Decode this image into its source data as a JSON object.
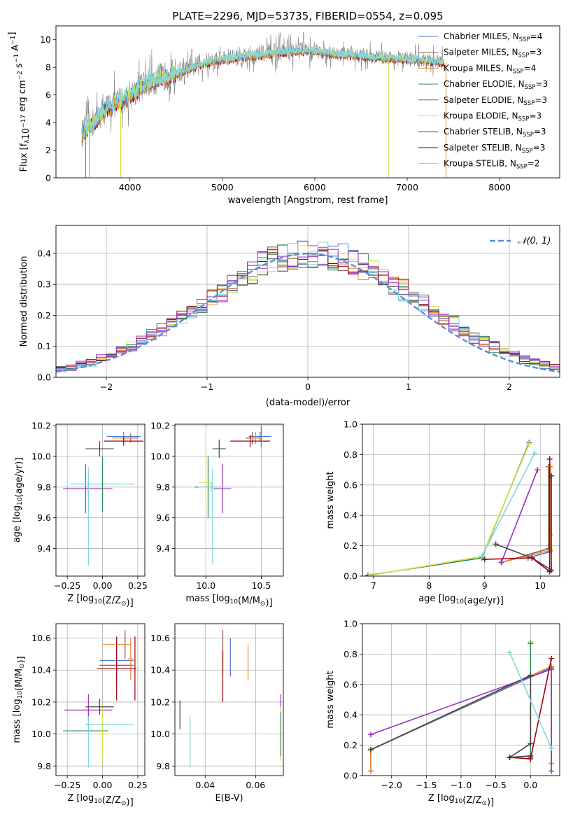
{
  "figure_title": "PLATE=2296, MJD=53735, FIBERID=0554, z=0.095",
  "colors": {
    "Chabrier MILES": "#4878d0",
    "Salpeter MILES": "#8c564b",
    "Kroupa MILES": "#ee8a2c",
    "Chabrier ELODIE": "#2e8b57",
    "Salpeter ELODIE": "#9b30c0",
    "Kroupa ELODIE": "#d6e04a",
    "Chabrier STELIB": "#444444",
    "Salpeter STELIB": "#a00010",
    "Kroupa STELIB": "#7fd8dc",
    "spectrum_data": "#808080",
    "spectrum_model": "#7fd8dc",
    "normal_curve": "#5b8bd8",
    "grid": "#b0b0b0"
  },
  "chart_data": [
    {
      "id": "spectrum",
      "type": "line",
      "xlabel": "wavelength [Angstrom, rest frame]",
      "ylabel": "Flux [f_λ10^-17 erg cm^-2 s^-1 A^-1]",
      "xlim": [
        3200,
        8650
      ],
      "ylim": [
        0,
        11
      ],
      "xticks": [
        4000,
        5000,
        6000,
        7000,
        8000
      ],
      "yticks": [
        0,
        2,
        4,
        6,
        8,
        10
      ],
      "grid": false,
      "legend_position": "top-right",
      "legend": [
        {
          "label": "Chabrier MILES, N_SSP=4",
          "text": "Chabrier MILES, N",
          "sub": "SSP",
          "tail": "=4",
          "model": "Chabrier MILES"
        },
        {
          "label": "Salpeter MILES, N_SSP=3",
          "text": "Salpeter MILES, N",
          "sub": "SSP",
          "tail": "=3",
          "model": "Salpeter MILES"
        },
        {
          "label": "Kroupa MILES, N_SSP=4",
          "text": "Kroupa MILES, N",
          "sub": "SSP",
          "tail": "=4",
          "model": "Kroupa MILES"
        },
        {
          "label": "Chabrier ELODIE, N_SSP=3",
          "text": "Chabrier ELODIE, N",
          "sub": "SSP",
          "tail": "=3",
          "model": "Chabrier ELODIE"
        },
        {
          "label": "Salpeter ELODIE, N_SSP=3",
          "text": "Salpeter ELODIE, N",
          "sub": "SSP",
          "tail": "=3",
          "model": "Salpeter ELODIE"
        },
        {
          "label": "Kroupa ELODIE, N_SSP=3",
          "text": "Kroupa ELODIE, N",
          "sub": "SSP",
          "tail": "=3",
          "model": "Kroupa ELODIE"
        },
        {
          "label": "Chabrier STELIB, N_SSP=3",
          "text": "Chabrier STELIB, N",
          "sub": "SSP",
          "tail": "=3",
          "model": "Chabrier STELIB"
        },
        {
          "label": "Salpeter STELIB, N_SSP=3",
          "text": "Salpeter STELIB, N",
          "sub": "SSP",
          "tail": "=3",
          "model": "Salpeter STELIB"
        },
        {
          "label": "Kroupa STELIB, N_SSP=2",
          "text": "Kroupa STELIB, N",
          "sub": "SSP",
          "tail": "=2",
          "model": "Kroupa STELIB"
        }
      ],
      "continuum": {
        "x": [
          3480,
          3600,
          3700,
          3800,
          3900,
          4000,
          4100,
          4200,
          4300,
          4400,
          4500,
          4600,
          4800,
          5000,
          5200,
          5400,
          5600,
          5800,
          6000,
          6200,
          6400,
          6600,
          6800,
          7000,
          7200,
          7400
        ],
        "y": [
          3.2,
          4.0,
          4.8,
          5.3,
          5.6,
          6.0,
          6.5,
          6.9,
          7.2,
          7.4,
          7.6,
          7.8,
          8.3,
          8.6,
          8.8,
          8.9,
          9.1,
          9.2,
          9.2,
          9.0,
          8.9,
          8.8,
          8.7,
          8.6,
          8.5,
          8.4
        ]
      },
      "data_noise_amplitude": 1.3,
      "model_spikes": [
        {
          "model": "Salpeter MILES",
          "x": 3520,
          "y": 0
        },
        {
          "model": "Kroupa MILES",
          "x": 3560,
          "y": 0
        },
        {
          "model": "Kroupa ELODIE",
          "x": 3900,
          "y": 0
        },
        {
          "model": "Kroupa ELODIE",
          "x": 6800,
          "y": 0
        },
        {
          "model": "Kroupa MILES",
          "x": 7420,
          "y": 0
        }
      ]
    },
    {
      "id": "residuals",
      "type": "histogram",
      "xlabel": "(data-model)/error",
      "ylabel": "Normed distribution",
      "xlim": [
        -2.5,
        2.5
      ],
      "ylim": [
        0,
        0.49
      ],
      "xticks": [
        -2,
        -1,
        0,
        1,
        2
      ],
      "yticks": [
        0.0,
        0.1,
        0.2,
        0.3,
        0.4
      ],
      "grid": true,
      "legend_position": "top-right",
      "legend": "𝒩(0, 1)",
      "bin_width": 0.1,
      "bin_start": -2.5,
      "normal": {
        "mean": 0,
        "sigma": 1
      }
    },
    {
      "id": "age_vs_Z",
      "type": "errorbar",
      "xlabel": "Z [log10(Z/Z⊙)]",
      "ylabel": "age  [log10(age/yr)]",
      "xlim": [
        -0.33,
        0.3
      ],
      "ylim": [
        9.22,
        10.21
      ],
      "xticks": [
        -0.25,
        0.0,
        0.25
      ],
      "yticks": [
        9.4,
        9.6,
        9.8,
        10.0,
        10.2
      ],
      "grid": true,
      "points": [
        {
          "model": "Chabrier MILES",
          "x": 0.15,
          "y": 10.13,
          "xerr": 0.12,
          "yerr": 0.03
        },
        {
          "model": "Salpeter MILES",
          "x": 0.2,
          "y": 10.12,
          "xerr": 0.05,
          "yerr": 0.03
        },
        {
          "model": "Kroupa MILES",
          "x": 0.15,
          "y": 10.12,
          "xerr": 0.08,
          "yerr": 0.03
        },
        {
          "model": "Chabrier ELODIE",
          "x": -0.12,
          "y": 9.79,
          "xerr": 0.16,
          "yerr": 0.16
        },
        {
          "model": "Salpeter ELODIE",
          "x": -0.1,
          "y": 9.79,
          "xerr": 0.17,
          "yerr": 0.05
        },
        {
          "model": "Kroupa ELODIE",
          "x": 0.0,
          "y": 9.82,
          "xerr": 0.05,
          "yerr": 0.18
        },
        {
          "model": "Chabrier STELIB",
          "x": -0.02,
          "y": 10.05,
          "xerr": 0.1,
          "yerr": 0.05
        },
        {
          "model": "Salpeter STELIB",
          "x": 0.15,
          "y": 10.1,
          "xerr": 0.14,
          "yerr": 0.03
        },
        {
          "model": "Kroupa STELIB",
          "x": 0.0,
          "y": 9.82,
          "xerr": 0.23,
          "yerr": 0.12
        },
        {
          "model": "Kroupa STELIB",
          "x": -0.1,
          "y": 9.61,
          "xerr": 0.0,
          "yerr": 0.32
        },
        {
          "model": "Chabrier ELODIE",
          "x": 0.0,
          "y": 9.82,
          "xerr": 0.0,
          "yerr": 0.18
        }
      ]
    },
    {
      "id": "age_vs_mass",
      "type": "errorbar",
      "xlabel": "mass [log10(M/M⊙)]",
      "ylabel": "",
      "xlim": [
        9.72,
        10.7
      ],
      "ylim": [
        9.22,
        10.21
      ],
      "xticks": [
        10.0,
        10.5
      ],
      "yticks": [
        9.4,
        9.6,
        9.8,
        10.0,
        10.2
      ],
      "grid": true,
      "points": [
        {
          "model": "Chabrier MILES",
          "x": 10.49,
          "y": 10.13,
          "xerr": 0.1,
          "yerr": 0.03
        },
        {
          "model": "Salpeter MILES",
          "x": 10.42,
          "y": 10.12,
          "xerr": 0.06,
          "yerr": 0.04
        },
        {
          "model": "Kroupa MILES",
          "x": 10.45,
          "y": 10.12,
          "xerr": 0.06,
          "yerr": 0.04
        },
        {
          "model": "Chabrier ELODIE",
          "x": 10.02,
          "y": 9.8,
          "xerr": 0.12,
          "yerr": 0.2
        },
        {
          "model": "Salpeter ELODIE",
          "x": 10.15,
          "y": 9.79,
          "xerr": 0.08,
          "yerr": 0.16
        },
        {
          "model": "Kroupa ELODIE",
          "x": 10.0,
          "y": 9.83,
          "xerr": 0.06,
          "yerr": 0.18
        },
        {
          "model": "Chabrier STELIB",
          "x": 10.12,
          "y": 10.05,
          "xerr": 0.06,
          "yerr": 0.06
        },
        {
          "model": "Salpeter STELIB",
          "x": 10.4,
          "y": 10.1,
          "xerr": 0.18,
          "yerr": 0.04
        },
        {
          "model": "Kroupa STELIB",
          "x": 10.05,
          "y": 9.8,
          "xerr": 0.12,
          "yerr": 0.03
        },
        {
          "model": "Kroupa STELIB",
          "x": 10.06,
          "y": 9.61,
          "xerr": 0.0,
          "yerr": 0.31
        },
        {
          "model": "Chabrier MILES",
          "x": 10.5,
          "y": 10.13,
          "xerr": 0.0,
          "yerr": 0.07
        }
      ]
    },
    {
      "id": "massweight_vs_age",
      "type": "line",
      "xlabel": "age  [log10(age/yr)]",
      "ylabel": "mass weight",
      "xlim": [
        6.8,
        10.35
      ],
      "ylim": [
        0,
        1.0
      ],
      "xticks": [
        7,
        8,
        9,
        10
      ],
      "yticks": [
        0.0,
        0.2,
        0.4,
        0.6,
        0.8,
        1.0
      ],
      "grid": true,
      "series": [
        {
          "model": "Chabrier MILES",
          "x": [
            9.78,
            10.17,
            10.17,
            10.17
          ],
          "y": [
            0.12,
            0.16,
            0.03,
            0.72
          ]
        },
        {
          "model": "Salpeter MILES",
          "x": [
            9.3,
            10.15,
            10.15
          ],
          "y": [
            0.09,
            0.18,
            0.72
          ]
        },
        {
          "model": "Kroupa MILES",
          "x": [
            9.3,
            10.18,
            10.18,
            10.18
          ],
          "y": [
            0.09,
            0.17,
            0.27,
            0.72
          ]
        },
        {
          "model": "Chabrier ELODIE",
          "x": [
            6.9,
            8.95,
            9.8
          ],
          "y": [
            0.005,
            0.12,
            0.88
          ]
        },
        {
          "model": "Salpeter ELODIE",
          "x": [
            9.3,
            9.95
          ],
          "y": [
            0.09,
            0.7
          ]
        },
        {
          "model": "Kroupa ELODIE",
          "x": [
            6.95,
            8.95,
            9.8
          ],
          "y": [
            0.005,
            0.13,
            0.87
          ]
        },
        {
          "model": "Chabrier STELIB",
          "x": [
            9.2,
            9.85,
            10.2,
            10.2
          ],
          "y": [
            0.21,
            0.12,
            0.04,
            0.66
          ]
        },
        {
          "model": "Salpeter STELIB",
          "x": [
            9.0,
            9.85,
            10.17,
            10.17
          ],
          "y": [
            0.11,
            0.12,
            0.03,
            0.77
          ]
        },
        {
          "model": "Kroupa STELIB",
          "x": [
            8.95,
            9.9
          ],
          "y": [
            0.13,
            0.81
          ]
        }
      ]
    },
    {
      "id": "mass_vs_Z",
      "type": "errorbar",
      "xlabel": "Z [log10(Z/Z⊙)]",
      "ylabel": "mass [log10(M/M⊙)]",
      "xlim": [
        -0.33,
        0.3
      ],
      "ylim": [
        9.74,
        10.69
      ],
      "xticks": [
        -0.25,
        0.0,
        0.25
      ],
      "yticks": [
        9.8,
        10.0,
        10.2,
        10.4,
        10.6
      ],
      "grid": true,
      "points": [
        {
          "model": "Chabrier MILES",
          "x": 0.1,
          "y": 10.46,
          "xerr": 0.12,
          "yerr": 0.14
        },
        {
          "model": "Salpeter MILES",
          "x": 0.1,
          "y": 10.43,
          "xerr": 0.12,
          "yerr": 0.03
        },
        {
          "model": "Kroupa MILES",
          "x": 0.2,
          "y": 10.47,
          "xerr": 0.02,
          "yerr": 0.13
        },
        {
          "model": "Chabrier ELODIE",
          "x": -0.12,
          "y": 10.02,
          "xerr": 0.16,
          "yerr": 0.0
        },
        {
          "model": "Salpeter ELODIE",
          "x": -0.1,
          "y": 10.15,
          "xerr": 0.17,
          "yerr": 0.1
        },
        {
          "model": "Kroupa ELODIE",
          "x": 0.0,
          "y": 10.0,
          "xerr": 0.05,
          "yerr": 0.17
        },
        {
          "model": "Chabrier STELIB",
          "x": -0.02,
          "y": 10.17,
          "xerr": 0.1,
          "yerr": 0.05
        },
        {
          "model": "Salpeter STELIB",
          "x": 0.1,
          "y": 10.41,
          "xerr": 0.14,
          "yerr": 0.2
        },
        {
          "model": "Salpeter STELIB",
          "x": 0.23,
          "y": 10.41,
          "xerr": 0.0,
          "yerr": 0.2
        },
        {
          "model": "Kroupa STELIB",
          "x": 0.05,
          "y": 10.06,
          "xerr": 0.17,
          "yerr": 0.0
        },
        {
          "model": "Kroupa STELIB",
          "x": -0.1,
          "y": 9.95,
          "xerr": 0.0,
          "yerr": 0.16
        },
        {
          "model": "Salpeter MILES",
          "x": 0.16,
          "y": 10.56,
          "xerr": 0.0,
          "yerr": 0.09
        },
        {
          "model": "Kroupa MILES",
          "x": 0.1,
          "y": 10.56,
          "xerr": 0.1,
          "yerr": 0.0
        },
        {
          "model": "Kroupa ELODIE",
          "x": 0.0,
          "y": 9.85,
          "xerr": 0.0,
          "yerr": 0.02
        }
      ]
    },
    {
      "id": "mass_vs_ebv",
      "type": "errorbar",
      "xlabel": "E(B-V)",
      "ylabel": "",
      "xlim": [
        0.028,
        0.071
      ],
      "ylim": [
        9.74,
        10.69
      ],
      "xticks": [
        0.04,
        0.06
      ],
      "yticks": [
        9.8,
        10.0,
        10.2,
        10.4,
        10.6
      ],
      "grid": true,
      "points": [
        {
          "model": "Chabrier MILES",
          "x": 0.05,
          "y": 10.48,
          "xerr": 0,
          "yerr": 0.12
        },
        {
          "model": "Salpeter MILES",
          "x": 0.047,
          "y": 10.51,
          "xerr": 0,
          "yerr": 0.14
        },
        {
          "model": "Kroupa MILES",
          "x": 0.057,
          "y": 10.45,
          "xerr": 0,
          "yerr": 0.11
        },
        {
          "model": "Salpeter STELIB",
          "x": 0.047,
          "y": 10.36,
          "xerr": 0,
          "yerr": 0.16
        },
        {
          "model": "Chabrier STELIB",
          "x": 0.03,
          "y": 10.12,
          "xerr": 0,
          "yerr": 0.09
        },
        {
          "model": "Kroupa STELIB",
          "x": 0.034,
          "y": 9.95,
          "xerr": 0,
          "yerr": 0.16
        },
        {
          "model": "Salpeter ELODIE",
          "x": 0.07,
          "y": 10.2,
          "xerr": 0,
          "yerr": 0.05
        },
        {
          "model": "Kroupa ELODIE",
          "x": 0.07,
          "y": 10.0,
          "xerr": 0,
          "yerr": 0.17
        },
        {
          "model": "Chabrier ELODIE",
          "x": 0.07,
          "y": 10.0,
          "xerr": 0,
          "yerr": 0.14
        }
      ]
    },
    {
      "id": "massweight_vs_Z",
      "type": "line",
      "xlabel": "Z [log10(Z/Z⊙)]",
      "ylabel": "mass weight",
      "xlim": [
        -2.42,
        0.42
      ],
      "ylim": [
        0,
        1.0
      ],
      "xticks": [
        -2.0,
        -1.5,
        -1.0,
        -0.5,
        0.0
      ],
      "yticks": [
        0.0,
        0.2,
        0.4,
        0.6,
        0.8,
        1.0
      ],
      "grid": true,
      "series": [
        {
          "model": "Chabrier MILES",
          "x": [
            -2.3,
            -2.3,
            0.3,
            0.3
          ],
          "y": [
            0.03,
            0.17,
            0.71,
            0.08
          ]
        },
        {
          "model": "Salpeter MILES",
          "x": [
            -2.3,
            0.3
          ],
          "y": [
            0.17,
            0.72
          ]
        },
        {
          "model": "Kroupa MILES",
          "x": [
            -2.3,
            -2.3,
            0.3,
            0.3
          ],
          "y": [
            0.03,
            0.17,
            0.72,
            0.08
          ]
        },
        {
          "model": "Kroupa ELODIE",
          "x": [
            0.0,
            0.0,
            0.0
          ],
          "y": [
            0.87,
            0.12,
            0.88
          ]
        },
        {
          "model": "Chabrier ELODIE",
          "x": [
            0.0,
            0.0
          ],
          "y": [
            0.12,
            0.87
          ]
        },
        {
          "model": "Salpeter ELODIE",
          "x": [
            -2.3,
            0.3,
            0.3
          ],
          "y": [
            0.27,
            0.7,
            0.03
          ]
        },
        {
          "model": "Chabrier STELIB",
          "x": [
            -2.3,
            0.0,
            0.0,
            -0.3,
            0.0
          ],
          "y": [
            0.17,
            0.66,
            0.21,
            0.12,
            0.13
          ]
        },
        {
          "model": "Salpeter STELIB",
          "x": [
            -0.3,
            0.0,
            0.3
          ],
          "y": [
            0.12,
            0.11,
            0.77
          ]
        },
        {
          "model": "Kroupa STELIB",
          "x": [
            -0.3,
            0.3
          ],
          "y": [
            0.81,
            0.18
          ]
        }
      ]
    }
  ]
}
